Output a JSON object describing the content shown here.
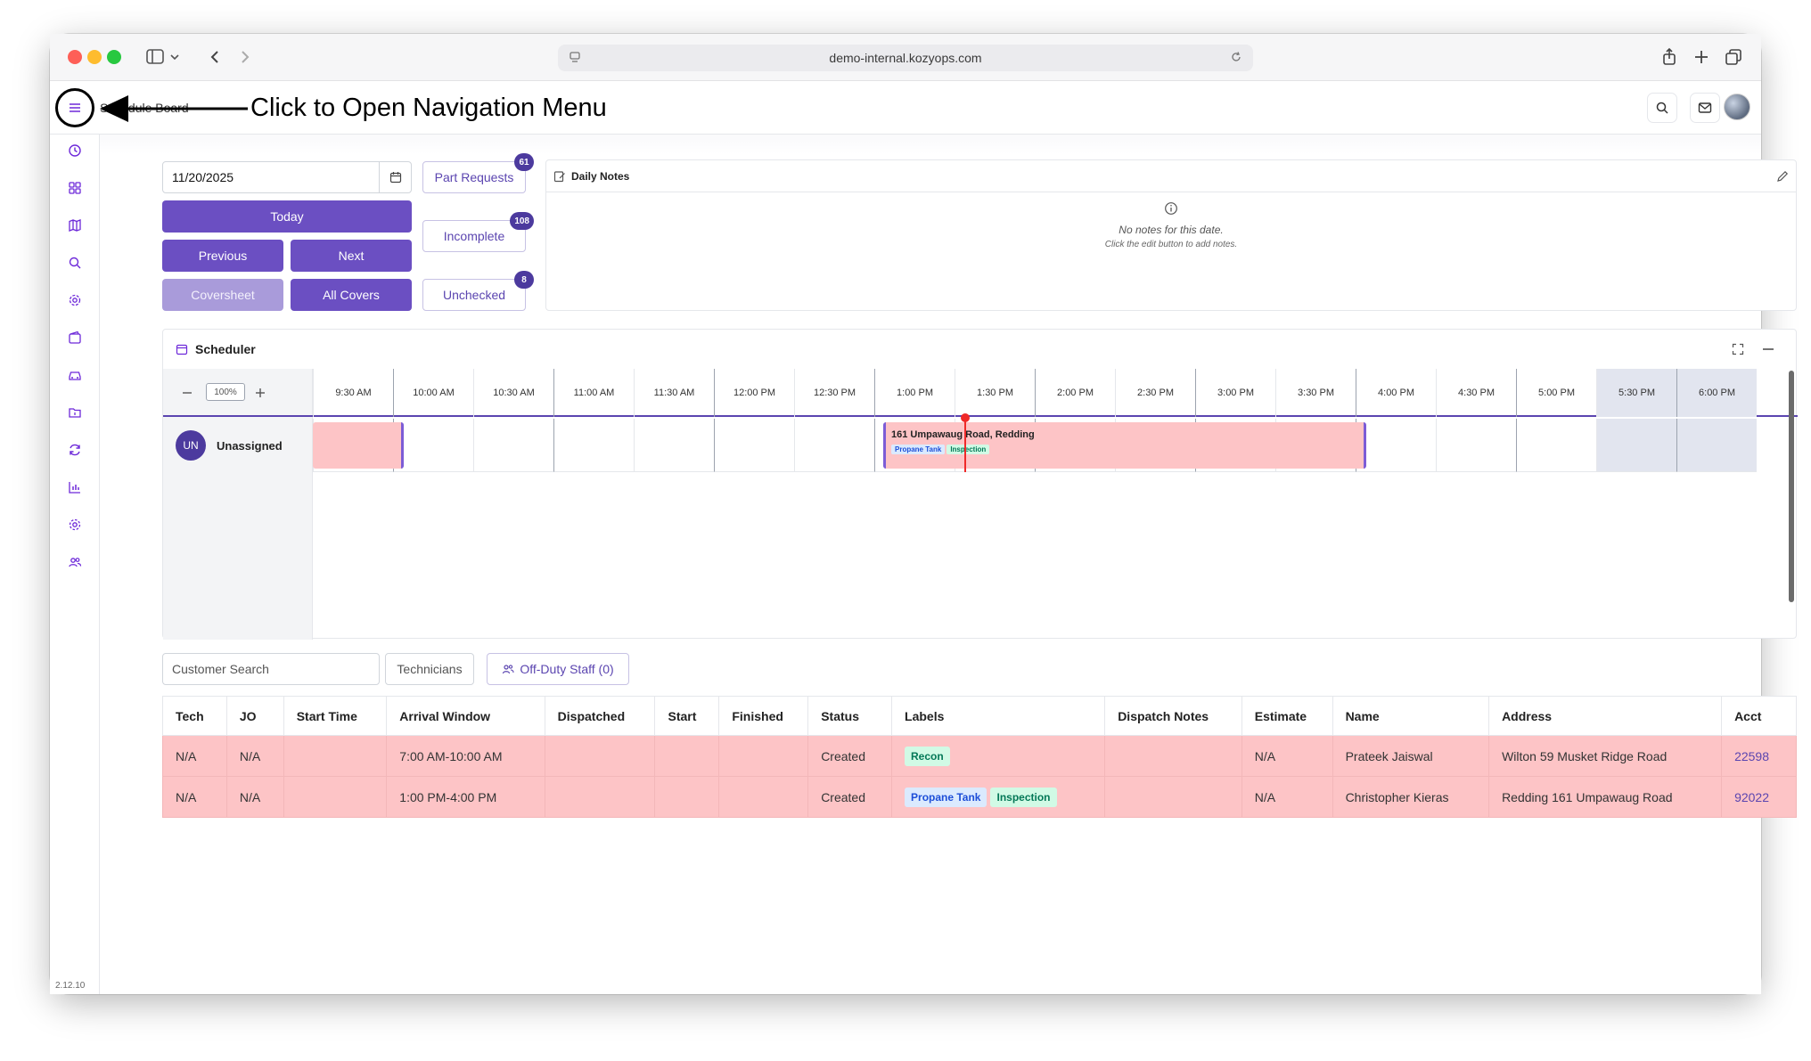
{
  "browser": {
    "url": "demo-internal.kozyops.com"
  },
  "header": {
    "page_title": "Schedule Board",
    "annotation": "Click to Open Navigation Menu"
  },
  "sidebar": {
    "icons": [
      "clock-icon",
      "grid-icon",
      "map-icon",
      "search-icon",
      "settings-icon",
      "wallet-icon",
      "car-icon",
      "folder-icon",
      "refresh-icon",
      "chart-icon",
      "gear-icon",
      "users-icon"
    ],
    "version": "2.12.10"
  },
  "controls": {
    "date": "11/20/2025",
    "today": "Today",
    "previous": "Previous",
    "next": "Next",
    "coversheet": "Coversheet",
    "all_covers": "All Covers",
    "part_requests": "Part Requests",
    "part_requests_count": "61",
    "incomplete": "Incomplete",
    "incomplete_count": "108",
    "unchecked": "Unchecked",
    "unchecked_count": "8"
  },
  "notes": {
    "title": "Daily Notes",
    "empty": "No notes for this date.",
    "hint": "Click the edit button to add notes."
  },
  "scheduler": {
    "title": "Scheduler",
    "zoom": "100%",
    "times": [
      "9:30 AM",
      "10:00 AM",
      "10:30 AM",
      "11:00 AM",
      "11:30 AM",
      "12:00 PM",
      "12:30 PM",
      "1:00 PM",
      "1:30 PM",
      "2:00 PM",
      "2:30 PM",
      "3:00 PM",
      "3:30 PM",
      "4:00 PM",
      "4:30 PM",
      "5:00 PM",
      "5:30 PM",
      "6:00 PM"
    ],
    "tech": {
      "initials": "UN",
      "name": "Unassigned"
    },
    "event": {
      "title": "161 Umpawaug Road, Redding",
      "labels": [
        "Propane Tank",
        "Inspection"
      ]
    }
  },
  "filters": {
    "customer_search_placeholder": "Customer Search",
    "technicians": "Technicians",
    "off_duty": "Off-Duty Staff (0)"
  },
  "table": {
    "headers": [
      "Tech",
      "JO",
      "Start Time",
      "Arrival Window",
      "Dispatched",
      "Start",
      "Finished",
      "Status",
      "Labels",
      "Dispatch Notes",
      "Estimate",
      "Name",
      "Address",
      "Acct"
    ],
    "rows": [
      {
        "tech": "N/A",
        "jo": "N/A",
        "start_time": "",
        "arrival": "7:00 AM-10:00 AM",
        "dispatched": "",
        "start": "",
        "finished": "",
        "status": "Created",
        "labels": [
          "Recon"
        ],
        "dispatch_notes": "",
        "estimate": "N/A",
        "name": "Prateek Jaiswal",
        "address": "Wilton 59 Musket Ridge Road",
        "acct": "22598"
      },
      {
        "tech": "N/A",
        "jo": "N/A",
        "start_time": "",
        "arrival": "1:00 PM-4:00 PM",
        "dispatched": "",
        "start": "",
        "finished": "",
        "status": "Created",
        "labels": [
          "Propane Tank",
          "Inspection"
        ],
        "dispatch_notes": "",
        "estimate": "N/A",
        "name": "Christopher Kieras",
        "address": "Redding 161 Umpawaug Road",
        "acct": "92022"
      }
    ]
  },
  "colors": {
    "accent": "#6b4fc2",
    "row_bg": "#fdc4c6",
    "now_line": "#ef2929"
  }
}
